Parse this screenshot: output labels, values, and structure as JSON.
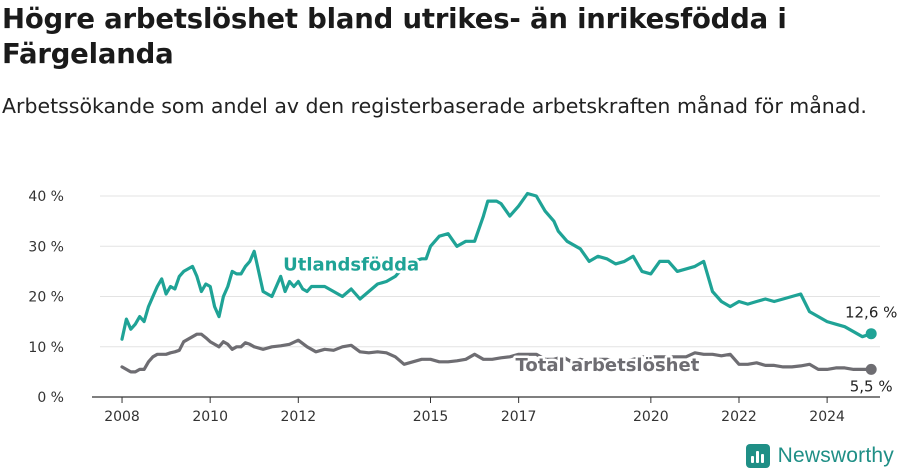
{
  "title": "Högre arbetslöshet bland utrikes- än inrikesfödda i Färgelanda",
  "subtitle": "Arbetssökande som andel av den registerbaserade arbetskraften månad för månad.",
  "brand": "Newsworthy",
  "chart_data": {
    "type": "line",
    "x_unit": "year",
    "ylim": [
      0,
      42
    ],
    "xlim": [
      2007.5,
      2025.2
    ],
    "y_ticks": [
      0,
      10,
      20,
      30,
      40
    ],
    "y_tick_labels": [
      "0 %",
      "10 %",
      "20 %",
      "30 %",
      "40 %"
    ],
    "x_ticks": [
      2008,
      2010,
      2012,
      2015,
      2017,
      2020,
      2022,
      2024
    ],
    "x_tick_labels": [
      "2008",
      "2010",
      "2012",
      "2015",
      "2017",
      "2020",
      "2022",
      "2024"
    ],
    "grid": "horizontal",
    "series": [
      {
        "name": "Utlandsfödda",
        "color": "#1fa396",
        "end_label": "12,6 %",
        "x": [
          2008.0,
          2008.1,
          2008.2,
          2008.3,
          2008.4,
          2008.5,
          2008.6,
          2008.7,
          2008.8,
          2008.9,
          2009.0,
          2009.1,
          2009.2,
          2009.3,
          2009.4,
          2009.5,
          2009.6,
          2009.7,
          2009.8,
          2009.9,
          2010.0,
          2010.1,
          2010.2,
          2010.3,
          2010.4,
          2010.5,
          2010.6,
          2010.7,
          2010.8,
          2010.9,
          2011.0,
          2011.2,
          2011.4,
          2011.5,
          2011.6,
          2011.7,
          2011.8,
          2011.9,
          2012.0,
          2012.1,
          2012.2,
          2012.3,
          2012.5,
          2012.6,
          2012.8,
          2013.0,
          2013.2,
          2013.4,
          2013.6,
          2013.8,
          2014.0,
          2014.2,
          2014.4,
          2014.6,
          2014.8,
          2014.9,
          2015.0,
          2015.2,
          2015.4,
          2015.6,
          2015.8,
          2016.0,
          2016.2,
          2016.3,
          2016.4,
          2016.5,
          2016.6,
          2016.8,
          2017.0,
          2017.2,
          2017.4,
          2017.6,
          2017.8,
          2017.9,
          2018.1,
          2018.2,
          2018.4,
          2018.6,
          2018.8,
          2019.0,
          2019.2,
          2019.4,
          2019.6,
          2019.8,
          2020.0,
          2020.2,
          2020.4,
          2020.6,
          2020.8,
          2021.0,
          2021.2,
          2021.4,
          2021.6,
          2021.8,
          2022.0,
          2022.2,
          2022.4,
          2022.6,
          2022.8,
          2023.0,
          2023.2,
          2023.4,
          2023.6,
          2023.8,
          2024.0,
          2024.2,
          2024.4,
          2024.6,
          2024.8,
          2025.0
        ],
        "values": [
          11.5,
          15.5,
          13.5,
          14.5,
          16,
          15,
          18,
          20,
          22,
          23.5,
          20.5,
          22,
          21.5,
          24,
          25,
          25.5,
          26,
          24,
          21,
          22.5,
          22,
          18,
          16,
          20,
          22,
          25,
          24.5,
          24.5,
          26,
          27,
          29,
          21,
          20,
          22,
          24,
          21,
          23,
          22,
          23,
          21.5,
          21,
          22,
          22,
          22,
          21,
          20,
          21.5,
          19.5,
          21,
          22.5,
          23,
          24,
          26,
          27,
          27.5,
          27.5,
          30,
          32,
          32.5,
          30,
          31,
          31,
          36,
          39,
          39,
          39,
          38.5,
          36,
          38,
          40.5,
          40,
          37,
          35,
          33,
          31,
          30.5,
          29.5,
          27,
          28,
          27.5,
          26.5,
          27,
          28,
          25,
          24.5,
          27,
          27,
          25,
          25.5,
          26,
          27,
          21,
          19,
          18,
          19,
          18.5,
          19,
          19.5,
          19,
          19.5,
          20,
          20.5,
          17,
          16,
          15,
          14.5,
          14,
          13,
          12,
          12.6
        ]
      },
      {
        "name": "Total arbetslöshet",
        "color": "#6e6d72",
        "end_label": "5,5 %",
        "x": [
          2008.0,
          2008.1,
          2008.2,
          2008.3,
          2008.4,
          2008.5,
          2008.6,
          2008.7,
          2008.8,
          2008.9,
          2009.0,
          2009.1,
          2009.2,
          2009.3,
          2009.4,
          2009.5,
          2009.6,
          2009.7,
          2009.8,
          2009.9,
          2010.0,
          2010.1,
          2010.2,
          2010.3,
          2010.4,
          2010.5,
          2010.6,
          2010.7,
          2010.8,
          2010.9,
          2011.0,
          2011.2,
          2011.4,
          2011.6,
          2011.8,
          2012.0,
          2012.2,
          2012.4,
          2012.6,
          2012.8,
          2013.0,
          2013.2,
          2013.4,
          2013.6,
          2013.8,
          2014.0,
          2014.2,
          2014.4,
          2014.6,
          2014.8,
          2015.0,
          2015.2,
          2015.4,
          2015.6,
          2015.8,
          2016.0,
          2016.2,
          2016.4,
          2016.6,
          2016.8,
          2017.0,
          2017.2,
          2017.4,
          2017.6,
          2017.8,
          2018.0,
          2018.2,
          2018.4,
          2018.6,
          2018.8,
          2019.0,
          2019.2,
          2019.4,
          2019.6,
          2019.8,
          2020.0,
          2020.2,
          2020.4,
          2020.6,
          2020.8,
          2021.0,
          2021.2,
          2021.4,
          2021.6,
          2021.8,
          2022.0,
          2022.2,
          2022.4,
          2022.6,
          2022.8,
          2023.0,
          2023.2,
          2023.4,
          2023.6,
          2023.8,
          2024.0,
          2024.2,
          2024.4,
          2024.6,
          2024.8,
          2025.0
        ],
        "values": [
          6,
          5.5,
          5,
          5,
          5.5,
          5.5,
          7,
          8,
          8.5,
          8.5,
          8.5,
          8.8,
          9,
          9.3,
          11,
          11.5,
          12,
          12.5,
          12.5,
          11.8,
          11,
          10.5,
          10,
          11,
          10.5,
          9.5,
          10,
          10,
          10.8,
          10.5,
          10,
          9.5,
          10,
          10.2,
          10.5,
          11.3,
          10,
          9,
          9.5,
          9.3,
          10,
          10.3,
          9,
          8.8,
          9,
          8.8,
          8,
          6.5,
          7,
          7.5,
          7.5,
          7,
          7,
          7.2,
          7.5,
          8.5,
          7.5,
          7.5,
          7.8,
          8,
          8.5,
          8.5,
          8.5,
          7.5,
          7.5,
          8,
          7,
          7.5,
          7,
          7.5,
          7.5,
          7,
          7,
          7.5,
          8,
          8,
          8,
          8,
          8,
          8,
          8.8,
          8.5,
          8.5,
          8.2,
          8.5,
          6.5,
          6.5,
          6.8,
          6.3,
          6.3,
          6,
          6,
          6.2,
          6.5,
          5.5,
          5.5,
          5.8,
          5.8,
          5.5,
          5.5,
          5.5
        ]
      }
    ]
  }
}
